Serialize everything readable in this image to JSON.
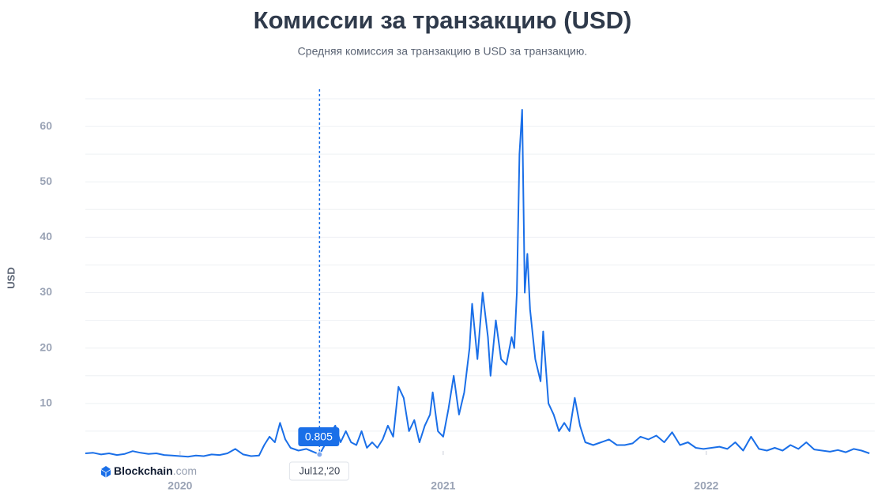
{
  "chart_data": {
    "type": "line",
    "title": "Комиссии за транзакцию (USD)",
    "subtitle": "Средняя комиссия за транзакцию в USD за транзакцию.",
    "y_label": "USD",
    "color": "#1a6fe8",
    "grid": true,
    "xlim": [
      2019.64,
      2022.64
    ],
    "xticks": [
      2020,
      2021,
      2022
    ],
    "ylim": [
      0,
      65
    ],
    "yticks": [
      10,
      20,
      30,
      40,
      50,
      60
    ],
    "minor_yticks": [
      5,
      15,
      25,
      35,
      45,
      55,
      65
    ],
    "x": [
      2019.64,
      2019.67,
      2019.7,
      2019.73,
      2019.76,
      2019.79,
      2019.82,
      2019.85,
      2019.88,
      2019.91,
      2019.94,
      2019.97,
      2020.0,
      2020.03,
      2020.06,
      2020.09,
      2020.12,
      2020.15,
      2020.18,
      2020.21,
      2020.24,
      2020.27,
      2020.3,
      2020.32,
      2020.34,
      2020.36,
      2020.38,
      2020.4,
      2020.42,
      2020.45,
      2020.48,
      2020.51,
      2020.53,
      2020.55,
      2020.57,
      2020.59,
      2020.61,
      2020.63,
      2020.65,
      2020.67,
      2020.69,
      2020.71,
      2020.73,
      2020.75,
      2020.77,
      2020.79,
      2020.81,
      2020.83,
      2020.85,
      2020.87,
      2020.89,
      2020.91,
      2020.93,
      2020.95,
      2020.96,
      2020.98,
      2021.0,
      2021.02,
      2021.04,
      2021.06,
      2021.08,
      2021.1,
      2021.11,
      2021.13,
      2021.15,
      2021.17,
      2021.18,
      2021.2,
      2021.22,
      2021.24,
      2021.26,
      2021.27,
      2021.28,
      2021.29,
      2021.3,
      2021.31,
      2021.32,
      2021.33,
      2021.35,
      2021.37,
      2021.38,
      2021.4,
      2021.42,
      2021.44,
      2021.46,
      2021.48,
      2021.5,
      2021.52,
      2021.54,
      2021.57,
      2021.6,
      2021.63,
      2021.66,
      2021.69,
      2021.72,
      2021.75,
      2021.78,
      2021.81,
      2021.84,
      2021.87,
      2021.9,
      2021.93,
      2021.96,
      2021.99,
      2022.02,
      2022.05,
      2022.08,
      2022.11,
      2022.14,
      2022.17,
      2022.2,
      2022.23,
      2022.26,
      2022.29,
      2022.32,
      2022.35,
      2022.38,
      2022.41,
      2022.44,
      2022.47,
      2022.5,
      2022.53,
      2022.56,
      2022.59,
      2022.62
    ],
    "values": [
      1.0,
      1.1,
      0.8,
      1.0,
      0.7,
      0.9,
      1.4,
      1.1,
      0.9,
      1.0,
      0.7,
      0.6,
      0.5,
      0.4,
      0.6,
      0.5,
      0.8,
      0.7,
      1.0,
      1.8,
      0.8,
      0.5,
      0.6,
      2.5,
      4.0,
      3.0,
      6.5,
      3.5,
      2.0,
      1.5,
      1.8,
      1.2,
      0.805,
      2.5,
      4.5,
      6.0,
      3.0,
      5.0,
      3.0,
      2.5,
      5.0,
      2.0,
      3.0,
      2.0,
      3.5,
      6.0,
      4.0,
      13.0,
      11.0,
      5.0,
      7.0,
      3.0,
      6.0,
      8.0,
      12.0,
      5.0,
      4.0,
      9.0,
      15.0,
      8.0,
      12.0,
      20.0,
      28.0,
      18.0,
      30.0,
      22.0,
      15.0,
      25.0,
      18.0,
      17.0,
      22.0,
      20.0,
      30.0,
      55.0,
      63.0,
      30.0,
      37.0,
      27.0,
      18.0,
      14.0,
      23.0,
      10.0,
      8.0,
      5.0,
      6.5,
      5.0,
      11.0,
      6.0,
      3.0,
      2.5,
      3.0,
      3.5,
      2.5,
      2.5,
      2.8,
      4.0,
      3.5,
      4.2,
      3.0,
      4.8,
      2.5,
      3.0,
      2.0,
      1.8,
      2.0,
      2.2,
      1.8,
      3.0,
      1.5,
      4.0,
      1.8,
      1.5,
      2.0,
      1.5,
      2.5,
      1.8,
      3.0,
      1.7,
      1.5,
      1.3,
      1.6,
      1.2,
      1.8,
      1.5,
      1.0
    ],
    "tooltip": {
      "x": 2020.53,
      "value": 0.805,
      "label": "Jul12,'20"
    },
    "watermark": {
      "name": "Blockchain",
      "suffix": ".com"
    }
  }
}
